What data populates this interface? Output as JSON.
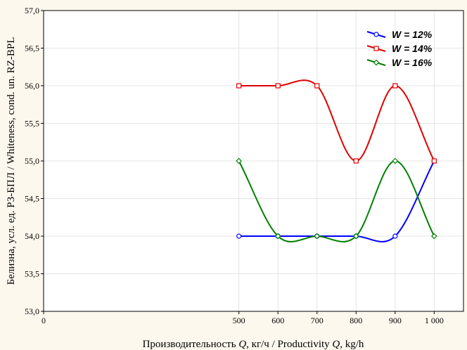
{
  "chart_data": {
    "type": "line",
    "xlabel_parts": [
      "Производительность ",
      "Q",
      ", кг/ч / Productivity ",
      "Q",
      ", kg/h"
    ],
    "ylabel": "Белизна, усл. ед. РЗ-БПЛ / Whiteness, cond. un. RZ-BPL",
    "x": [
      500,
      600,
      700,
      800,
      900,
      1000
    ],
    "xlim": [
      0,
      1075
    ],
    "ylim": [
      53.0,
      57.0
    ],
    "x_ticks": [
      0,
      500,
      600,
      700,
      800,
      900,
      1000
    ],
    "x_tick_labels": [
      "0",
      "500",
      "600",
      "700",
      "800",
      "900",
      "1 000"
    ],
    "y_ticks": [
      53.0,
      53.5,
      54.0,
      54.5,
      55.0,
      55.5,
      56.0,
      56.5,
      57.0
    ],
    "y_tick_labels": [
      "53,0",
      "53,5",
      "54,0",
      "54,5",
      "55,0",
      "55,5",
      "56,0",
      "56,5",
      "57,0"
    ],
    "grid": true,
    "legend_position": "top-right",
    "series": [
      {
        "name": "W = 12%",
        "color": "#0000ff",
        "marker": "circle",
        "values": [
          54.0,
          54.0,
          54.0,
          54.0,
          54.0,
          55.0
        ]
      },
      {
        "name": "W = 14%",
        "color": "#e00000",
        "marker": "square",
        "values": [
          56.0,
          56.0,
          56.0,
          55.0,
          56.0,
          55.0
        ]
      },
      {
        "name": "W = 16%",
        "color": "#008000",
        "marker": "diamond",
        "values": [
          55.0,
          54.0,
          54.0,
          54.0,
          55.0,
          54.0
        ]
      }
    ]
  }
}
